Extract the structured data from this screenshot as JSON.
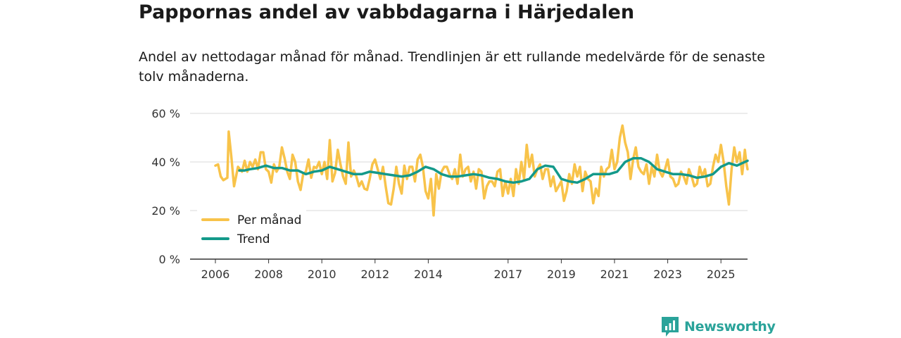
{
  "chart_data": {
    "type": "line",
    "title": "Pappornas andel av vabbdagarna i Härjedalen",
    "subtitle": "Andel av nettodagar månad för månad. Trendlinjen är ett rullande medelvärde för de senaste tolv månaderna.",
    "xlabel": "",
    "ylabel": "",
    "xlim": [
      2005.6,
      2026.0
    ],
    "ylim": [
      0,
      60
    ],
    "grid": true,
    "legend_position": "bottom-left",
    "yticks": [
      {
        "value": 0,
        "label": "0 %"
      },
      {
        "value": 20,
        "label": "20 %"
      },
      {
        "value": 40,
        "label": "40 %"
      },
      {
        "value": 60,
        "label": "60 %"
      }
    ],
    "xticks": [
      {
        "value": 2006,
        "label": "2006"
      },
      {
        "value": 2008,
        "label": "2008"
      },
      {
        "value": 2010,
        "label": "2010"
      },
      {
        "value": 2012,
        "label": "2012"
      },
      {
        "value": 2014,
        "label": "2014"
      },
      {
        "value": 2017,
        "label": "2017"
      },
      {
        "value": 2019,
        "label": "2019"
      },
      {
        "value": 2021,
        "label": "2021"
      },
      {
        "value": 2023,
        "label": "2023"
      },
      {
        "value": 2025,
        "label": "2025"
      }
    ],
    "series": [
      {
        "name": "Per månad",
        "color": "#f8c34a",
        "points": [
          [
            2006.0,
            38.5
          ],
          [
            2006.1,
            39
          ],
          [
            2006.2,
            34
          ],
          [
            2006.3,
            32.5
          ],
          [
            2006.45,
            33.5
          ],
          [
            2006.5,
            52.5
          ],
          [
            2006.6,
            42
          ],
          [
            2006.7,
            30
          ],
          [
            2006.85,
            38
          ],
          [
            2007.0,
            36
          ],
          [
            2007.1,
            40.5
          ],
          [
            2007.2,
            36
          ],
          [
            2007.3,
            40
          ],
          [
            2007.4,
            38
          ],
          [
            2007.5,
            41
          ],
          [
            2007.6,
            37
          ],
          [
            2007.7,
            44
          ],
          [
            2007.8,
            44
          ],
          [
            2007.9,
            37
          ],
          [
            2008.0,
            36
          ],
          [
            2008.1,
            31.5
          ],
          [
            2008.2,
            39
          ],
          [
            2008.3,
            36
          ],
          [
            2008.4,
            38
          ],
          [
            2008.5,
            46
          ],
          [
            2008.6,
            41.5
          ],
          [
            2008.7,
            36
          ],
          [
            2008.8,
            33
          ],
          [
            2008.9,
            43
          ],
          [
            2009.0,
            40
          ],
          [
            2009.1,
            32
          ],
          [
            2009.2,
            28.5
          ],
          [
            2009.3,
            35
          ],
          [
            2009.4,
            36
          ],
          [
            2009.5,
            41
          ],
          [
            2009.6,
            33.5
          ],
          [
            2009.7,
            38
          ],
          [
            2009.8,
            37.5
          ],
          [
            2009.9,
            40
          ],
          [
            2010.0,
            35
          ],
          [
            2010.1,
            40
          ],
          [
            2010.2,
            33
          ],
          [
            2010.3,
            49
          ],
          [
            2010.4,
            32
          ],
          [
            2010.5,
            35.5
          ],
          [
            2010.6,
            45
          ],
          [
            2010.7,
            39
          ],
          [
            2010.8,
            34
          ],
          [
            2010.9,
            31
          ],
          [
            2011.0,
            48
          ],
          [
            2011.1,
            34
          ],
          [
            2011.2,
            36.5
          ],
          [
            2011.3,
            34
          ],
          [
            2011.4,
            30
          ],
          [
            2011.5,
            32
          ],
          [
            2011.6,
            29
          ],
          [
            2011.7,
            28.5
          ],
          [
            2011.8,
            33
          ],
          [
            2011.9,
            39
          ],
          [
            2012.0,
            41
          ],
          [
            2012.1,
            37
          ],
          [
            2012.2,
            33
          ],
          [
            2012.3,
            38
          ],
          [
            2012.4,
            30
          ],
          [
            2012.5,
            23
          ],
          [
            2012.6,
            22.5
          ],
          [
            2012.7,
            29
          ],
          [
            2012.8,
            38
          ],
          [
            2012.9,
            31
          ],
          [
            2013.0,
            27
          ],
          [
            2013.1,
            38.5
          ],
          [
            2013.2,
            33
          ],
          [
            2013.3,
            38
          ],
          [
            2013.4,
            38
          ],
          [
            2013.5,
            32
          ],
          [
            2013.6,
            41
          ],
          [
            2013.7,
            43
          ],
          [
            2013.8,
            38
          ],
          [
            2013.9,
            28
          ],
          [
            2014.0,
            25
          ],
          [
            2014.1,
            33
          ],
          [
            2014.2,
            18
          ],
          [
            2014.3,
            35
          ],
          [
            2014.4,
            29
          ],
          [
            2014.5,
            36
          ],
          [
            2014.6,
            38
          ],
          [
            2014.7,
            38
          ],
          [
            2014.8,
            35
          ],
          [
            2014.9,
            33
          ],
          [
            2015.0,
            37
          ],
          [
            2015.1,
            31
          ],
          [
            2015.2,
            43
          ],
          [
            2015.3,
            34
          ],
          [
            2015.4,
            37
          ],
          [
            2015.5,
            38
          ],
          [
            2015.6,
            32
          ],
          [
            2015.7,
            36
          ],
          [
            2015.8,
            29
          ],
          [
            2015.9,
            37
          ],
          [
            2016.0,
            36
          ],
          [
            2016.1,
            25
          ],
          [
            2016.2,
            30
          ],
          [
            2016.3,
            32
          ],
          [
            2016.4,
            32
          ],
          [
            2016.5,
            30
          ],
          [
            2016.6,
            36
          ],
          [
            2016.7,
            37
          ],
          [
            2016.8,
            26
          ],
          [
            2016.9,
            32
          ],
          [
            2017.0,
            27
          ],
          [
            2017.1,
            33
          ],
          [
            2017.2,
            26
          ],
          [
            2017.3,
            37
          ],
          [
            2017.4,
            31
          ],
          [
            2017.5,
            40
          ],
          [
            2017.6,
            33
          ],
          [
            2017.7,
            47
          ],
          [
            2017.8,
            38
          ],
          [
            2017.9,
            43
          ],
          [
            2018.0,
            34
          ],
          [
            2018.1,
            37
          ],
          [
            2018.2,
            39
          ],
          [
            2018.3,
            33
          ],
          [
            2018.4,
            37
          ],
          [
            2018.5,
            37
          ],
          [
            2018.6,
            30
          ],
          [
            2018.7,
            34
          ],
          [
            2018.8,
            28
          ],
          [
            2018.9,
            30
          ],
          [
            2019.0,
            32
          ],
          [
            2019.1,
            24
          ],
          [
            2019.2,
            28
          ],
          [
            2019.3,
            35
          ],
          [
            2019.4,
            31
          ],
          [
            2019.5,
            39
          ],
          [
            2019.6,
            34
          ],
          [
            2019.7,
            38
          ],
          [
            2019.8,
            28
          ],
          [
            2019.9,
            36
          ],
          [
            2020.0,
            33
          ],
          [
            2020.1,
            32
          ],
          [
            2020.2,
            23
          ],
          [
            2020.3,
            29
          ],
          [
            2020.4,
            26
          ],
          [
            2020.5,
            38
          ],
          [
            2020.6,
            34
          ],
          [
            2020.7,
            37
          ],
          [
            2020.8,
            38
          ],
          [
            2020.9,
            45
          ],
          [
            2021.0,
            37
          ],
          [
            2021.1,
            40
          ],
          [
            2021.2,
            50
          ],
          [
            2021.3,
            55
          ],
          [
            2021.4,
            48
          ],
          [
            2021.5,
            44
          ],
          [
            2021.6,
            33
          ],
          [
            2021.7,
            41
          ],
          [
            2021.8,
            46
          ],
          [
            2021.9,
            38
          ],
          [
            2022.0,
            36
          ],
          [
            2022.1,
            35
          ],
          [
            2022.2,
            39
          ],
          [
            2022.3,
            31
          ],
          [
            2022.4,
            38
          ],
          [
            2022.5,
            34
          ],
          [
            2022.6,
            43
          ],
          [
            2022.7,
            36
          ],
          [
            2022.8,
            34
          ],
          [
            2022.9,
            37
          ],
          [
            2023.0,
            41
          ],
          [
            2023.1,
            34
          ],
          [
            2023.2,
            33
          ],
          [
            2023.3,
            30
          ],
          [
            2023.4,
            31
          ],
          [
            2023.5,
            36
          ],
          [
            2023.6,
            34
          ],
          [
            2023.7,
            31
          ],
          [
            2023.8,
            37
          ],
          [
            2023.9,
            34
          ],
          [
            2024.0,
            30
          ],
          [
            2024.1,
            31
          ],
          [
            2024.2,
            38
          ],
          [
            2024.3,
            34
          ],
          [
            2024.4,
            37
          ],
          [
            2024.5,
            30
          ],
          [
            2024.6,
            31
          ],
          [
            2024.7,
            38
          ],
          [
            2024.8,
            43
          ],
          [
            2024.9,
            40
          ],
          [
            2025.0,
            47
          ],
          [
            2025.1,
            40
          ],
          [
            2025.2,
            30
          ],
          [
            2025.3,
            22.5
          ],
          [
            2025.4,
            37
          ],
          [
            2025.5,
            46
          ],
          [
            2025.6,
            40
          ],
          [
            2025.7,
            44
          ],
          [
            2025.8,
            35
          ],
          [
            2025.9,
            45
          ],
          [
            2025.95,
            40
          ],
          [
            2026.0,
            37
          ]
        ]
      },
      {
        "name": "Trend",
        "color": "#13998a",
        "points": [
          [
            2006.9,
            36.5
          ],
          [
            2007.1,
            36.5
          ],
          [
            2007.3,
            37
          ],
          [
            2007.6,
            37.5
          ],
          [
            2007.9,
            38.5
          ],
          [
            2008.2,
            37.5
          ],
          [
            2008.5,
            37.5
          ],
          [
            2008.8,
            36.5
          ],
          [
            2009.1,
            36.5
          ],
          [
            2009.4,
            35
          ],
          [
            2009.7,
            36
          ],
          [
            2010.0,
            36.5
          ],
          [
            2010.3,
            38
          ],
          [
            2010.6,
            37
          ],
          [
            2010.9,
            36
          ],
          [
            2011.2,
            35
          ],
          [
            2011.5,
            35
          ],
          [
            2011.8,
            36
          ],
          [
            2012.1,
            35.5
          ],
          [
            2012.4,
            35
          ],
          [
            2012.7,
            34.5
          ],
          [
            2013.0,
            34
          ],
          [
            2013.3,
            34.5
          ],
          [
            2013.6,
            36
          ],
          [
            2013.9,
            38
          ],
          [
            2014.2,
            37
          ],
          [
            2014.5,
            35
          ],
          [
            2014.8,
            34
          ],
          [
            2015.1,
            34
          ],
          [
            2015.4,
            34.5
          ],
          [
            2015.7,
            35
          ],
          [
            2016.0,
            34.5
          ],
          [
            2016.3,
            33.5
          ],
          [
            2016.6,
            33
          ],
          [
            2016.9,
            32
          ],
          [
            2017.2,
            31.5
          ],
          [
            2017.5,
            32
          ],
          [
            2017.8,
            33
          ],
          [
            2018.1,
            37
          ],
          [
            2018.4,
            38.5
          ],
          [
            2018.7,
            38
          ],
          [
            2019.0,
            33
          ],
          [
            2019.3,
            32
          ],
          [
            2019.6,
            31.5
          ],
          [
            2019.9,
            33
          ],
          [
            2020.2,
            35
          ],
          [
            2020.5,
            35
          ],
          [
            2020.8,
            35
          ],
          [
            2021.1,
            36
          ],
          [
            2021.4,
            40
          ],
          [
            2021.7,
            41.5
          ],
          [
            2022.0,
            41.5
          ],
          [
            2022.3,
            40
          ],
          [
            2022.6,
            37
          ],
          [
            2022.9,
            36
          ],
          [
            2023.2,
            35
          ],
          [
            2023.5,
            35
          ],
          [
            2023.8,
            34.5
          ],
          [
            2024.1,
            33.5
          ],
          [
            2024.4,
            34
          ],
          [
            2024.7,
            35
          ],
          [
            2025.0,
            38
          ],
          [
            2025.3,
            39.5
          ],
          [
            2025.6,
            38.5
          ],
          [
            2025.8,
            39.5
          ],
          [
            2026.0,
            40.5
          ]
        ]
      }
    ]
  },
  "brand": {
    "name": "Newsworthy"
  }
}
